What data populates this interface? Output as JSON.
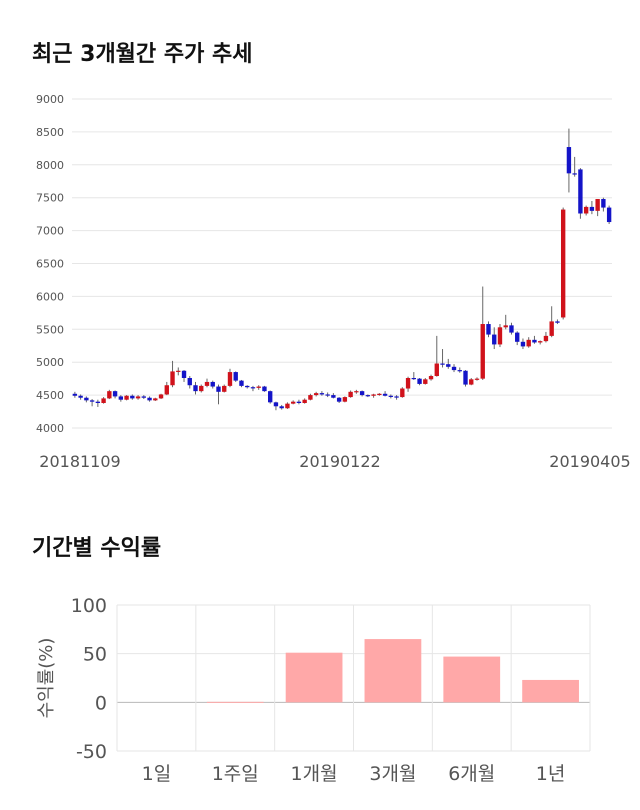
{
  "sections": {
    "price_title": "최근 3개월간 주가 추세",
    "returns_title": "기간별 수익률"
  },
  "colors": {
    "up": "#d0121b",
    "down": "#1414c8",
    "bar": "#ffa8a8",
    "grid": "#e6e6e6"
  },
  "chart_data": [
    {
      "type": "candlestick",
      "title": "최근 3개월간 주가 추세",
      "ylim": [
        4000,
        9000
      ],
      "yticks": [
        4000,
        4500,
        5000,
        5500,
        6000,
        6500,
        7000,
        7500,
        8000,
        8500,
        9000
      ],
      "x_labels": [
        "20181109",
        "20190122",
        "20190405"
      ],
      "grid": true,
      "candles": [
        [
          4520,
          4550,
          4460,
          4490
        ],
        [
          4490,
          4510,
          4430,
          4460
        ],
        [
          4460,
          4480,
          4390,
          4420
        ],
        [
          4420,
          4440,
          4330,
          4400
        ],
        [
          4400,
          4430,
          4320,
          4380
        ],
        [
          4380,
          4470,
          4370,
          4450
        ],
        [
          4450,
          4580,
          4440,
          4560
        ],
        [
          4560,
          4570,
          4450,
          4480
        ],
        [
          4480,
          4500,
          4400,
          4430
        ],
        [
          4430,
          4500,
          4420,
          4490
        ],
        [
          4490,
          4510,
          4430,
          4450
        ],
        [
          4450,
          4500,
          4430,
          4480
        ],
        [
          4480,
          4500,
          4440,
          4460
        ],
        [
          4460,
          4480,
          4400,
          4420
        ],
        [
          4420,
          4460,
          4410,
          4450
        ],
        [
          4450,
          4520,
          4440,
          4510
        ],
        [
          4510,
          4700,
          4500,
          4650
        ],
        [
          4650,
          5020,
          4620,
          4860
        ],
        [
          4860,
          4920,
          4800,
          4870
        ],
        [
          4870,
          4880,
          4700,
          4760
        ],
        [
          4760,
          4790,
          4600,
          4650
        ],
        [
          4650,
          4700,
          4510,
          4560
        ],
        [
          4560,
          4660,
          4540,
          4640
        ],
        [
          4640,
          4750,
          4620,
          4700
        ],
        [
          4700,
          4720,
          4600,
          4630
        ],
        [
          4630,
          4660,
          4360,
          4550
        ],
        [
          4550,
          4660,
          4540,
          4640
        ],
        [
          4640,
          4900,
          4620,
          4850
        ],
        [
          4850,
          4860,
          4700,
          4720
        ],
        [
          4720,
          4730,
          4620,
          4640
        ],
        [
          4640,
          4650,
          4600,
          4620
        ],
        [
          4620,
          4640,
          4560,
          4610
        ],
        [
          4610,
          4650,
          4580,
          4630
        ],
        [
          4630,
          4640,
          4550,
          4560
        ],
        [
          4560,
          4570,
          4370,
          4390
        ],
        [
          4390,
          4400,
          4270,
          4330
        ],
        [
          4330,
          4350,
          4280,
          4300
        ],
        [
          4300,
          4390,
          4290,
          4370
        ],
        [
          4370,
          4420,
          4360,
          4400
        ],
        [
          4400,
          4430,
          4360,
          4380
        ],
        [
          4380,
          4450,
          4370,
          4430
        ],
        [
          4430,
          4520,
          4420,
          4500
        ],
        [
          4500,
          4550,
          4480,
          4530
        ],
        [
          4530,
          4560,
          4490,
          4510
        ],
        [
          4510,
          4540,
          4470,
          4500
        ],
        [
          4500,
          4530,
          4450,
          4460
        ],
        [
          4460,
          4470,
          4380,
          4400
        ],
        [
          4400,
          4480,
          4390,
          4470
        ],
        [
          4470,
          4570,
          4460,
          4550
        ],
        [
          4550,
          4580,
          4520,
          4560
        ],
        [
          4560,
          4570,
          4480,
          4500
        ],
        [
          4500,
          4510,
          4470,
          4490
        ],
        [
          4490,
          4520,
          4460,
          4510
        ],
        [
          4510,
          4530,
          4490,
          4520
        ],
        [
          4520,
          4560,
          4480,
          4490
        ],
        [
          4490,
          4510,
          4450,
          4480
        ],
        [
          4480,
          4500,
          4430,
          4470
        ],
        [
          4470,
          4620,
          4460,
          4600
        ],
        [
          4600,
          4780,
          4550,
          4760
        ],
        [
          4760,
          4850,
          4730,
          4750
        ],
        [
          4750,
          4760,
          4650,
          4670
        ],
        [
          4670,
          4760,
          4660,
          4740
        ],
        [
          4740,
          4810,
          4720,
          4790
        ],
        [
          4790,
          5400,
          4780,
          4980
        ],
        [
          4980,
          5200,
          4920,
          4970
        ],
        [
          4970,
          5050,
          4900,
          4930
        ],
        [
          4930,
          4970,
          4850,
          4880
        ],
        [
          4880,
          4920,
          4840,
          4870
        ],
        [
          4870,
          4880,
          4630,
          4660
        ],
        [
          4660,
          4760,
          4650,
          4740
        ],
        [
          4740,
          4770,
          4720,
          4750
        ],
        [
          4750,
          6150,
          4730,
          5580
        ],
        [
          5580,
          5620,
          5380,
          5420
        ],
        [
          5420,
          5530,
          5200,
          5270
        ],
        [
          5270,
          5580,
          5230,
          5530
        ],
        [
          5530,
          5720,
          5500,
          5560
        ],
        [
          5560,
          5600,
          5420,
          5450
        ],
        [
          5450,
          5470,
          5260,
          5310
        ],
        [
          5310,
          5360,
          5200,
          5240
        ],
        [
          5240,
          5380,
          5220,
          5340
        ],
        [
          5340,
          5400,
          5280,
          5300
        ],
        [
          5300,
          5330,
          5270,
          5320
        ],
        [
          5320,
          5460,
          5300,
          5400
        ],
        [
          5400,
          5850,
          5380,
          5620
        ],
        [
          5620,
          5650,
          5580,
          5600
        ],
        [
          5680,
          7350,
          5650,
          7320
        ],
        [
          8270,
          8550,
          7580,
          7870
        ],
        [
          7870,
          8120,
          7820,
          7860
        ],
        [
          7930,
          7950,
          7180,
          7260
        ],
        [
          7260,
          7380,
          7230,
          7360
        ],
        [
          7360,
          7450,
          7250,
          7300
        ],
        [
          7300,
          7480,
          7220,
          7480
        ],
        [
          7480,
          7500,
          7290,
          7350
        ],
        [
          7350,
          7380,
          7100,
          7130
        ]
      ]
    },
    {
      "type": "bar",
      "title": "기간별 수익률",
      "categories": [
        "1일",
        "1주일",
        "1개월",
        "3개월",
        "6개월",
        "1년"
      ],
      "values": [
        0,
        0.5,
        51,
        65,
        47,
        23
      ],
      "ylabel": "수익률(%)",
      "ylim": [
        -50,
        100
      ],
      "yticks": [
        -50,
        0,
        50,
        100
      ],
      "grid": true
    }
  ]
}
